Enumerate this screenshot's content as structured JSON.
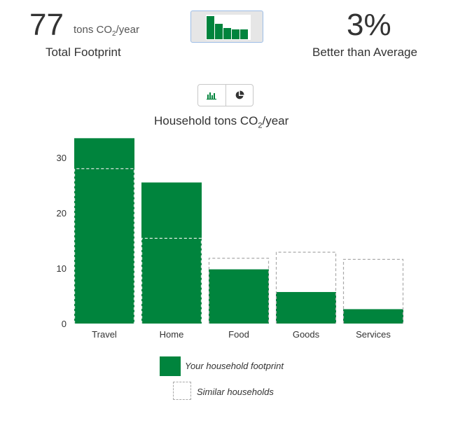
{
  "summary": {
    "total_value": "77",
    "total_unit_prefix": "tons CO",
    "total_unit_sub": "2",
    "total_unit_suffix": "/year",
    "total_label": "Total Footprint",
    "percent_value": "3%",
    "percent_label": "Better than Average"
  },
  "view_toggle": {
    "bar_icon": "bar-chart-icon",
    "pie_icon": "pie-chart-icon",
    "selected": "bar"
  },
  "colors": {
    "footprint": "#00843d",
    "similar": "#aaaaaa"
  },
  "chart_data": {
    "type": "bar",
    "title_prefix": "Household tons CO",
    "title_sub": "2",
    "title_suffix": "/year",
    "categories": [
      "Travel",
      "Home",
      "Food",
      "Goods",
      "Services"
    ],
    "series": [
      {
        "name": "Your household footprint",
        "values": [
          33.5,
          25.5,
          9.8,
          5.7,
          2.6
        ]
      },
      {
        "name": "Similar households",
        "values": [
          28.0,
          15.4,
          11.8,
          12.9,
          11.6
        ]
      }
    ],
    "yticks": [
      0,
      10,
      20,
      30
    ],
    "ylim": [
      0,
      34
    ],
    "legend_position": "bottom"
  }
}
